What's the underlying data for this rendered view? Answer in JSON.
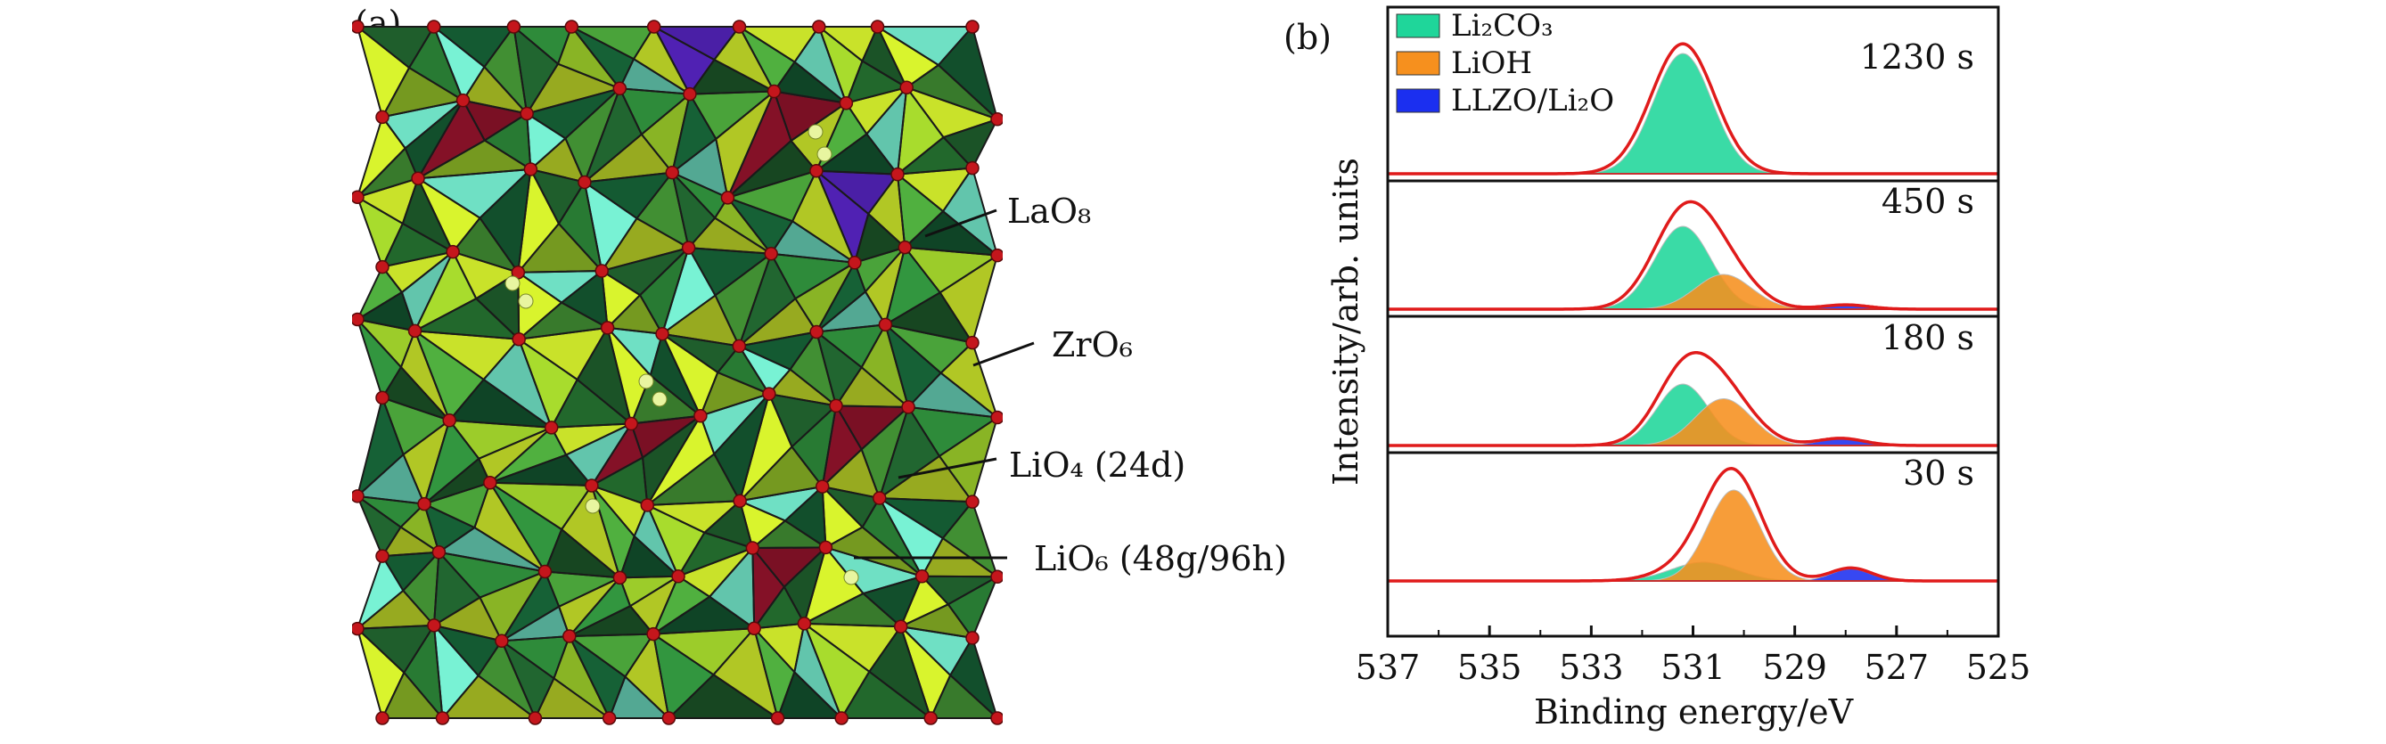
{
  "panel_a": {
    "label": "(a)",
    "annotations": [
      {
        "id": "lao8",
        "text": "LaO₈"
      },
      {
        "id": "zro6",
        "text": "ZrO₆"
      },
      {
        "id": "lio4",
        "text": "LiO₄ (24d)"
      },
      {
        "id": "lio6",
        "text": "LiO₆ (48g/96h)"
      }
    ],
    "colors": {
      "lao8_dark": "#1f5e2c",
      "lao8_light": "#c9e22a",
      "zro6": "#6fe0c4",
      "lio4": "#7a1024",
      "lio6": "#4a1fa6",
      "oxygen": "#c4161c"
    }
  },
  "panel_b": {
    "label": "(b)",
    "chart_data": {
      "type": "area",
      "xlabel": "Binding energy/eV",
      "ylabel": "Intensity/arb. units",
      "xlim": [
        537,
        525
      ],
      "xaxis_reversed": true,
      "xticks": [
        "537",
        "535",
        "533",
        "531",
        "529",
        "527",
        "525"
      ],
      "legend": {
        "placement": "top-left",
        "entries": [
          {
            "name": "Li₂CO₃",
            "color": "#1fd69a"
          },
          {
            "name": "LiOH",
            "color": "#f6901e"
          },
          {
            "name": "LLZO/Li₂O",
            "color": "#1b2ff0"
          }
        ]
      },
      "envelope_color": "#e01b1b",
      "baseline_color": "#a9a9a9",
      "panels": [
        {
          "label": "1230 s",
          "components": [
            {
              "name": "Li₂CO₃",
              "center": 531.2,
              "fwhm": 1.35,
              "height": 0.9
            }
          ]
        },
        {
          "label": "450 s",
          "components": [
            {
              "name": "Li₂CO₃",
              "center": 531.2,
              "fwhm": 1.3,
              "height": 0.62
            },
            {
              "name": "LiOH",
              "center": 530.4,
              "fwhm": 1.3,
              "height": 0.26
            },
            {
              "name": "LLZO/Li₂O",
              "center": 528.0,
              "fwhm": 1.0,
              "height": 0.03
            }
          ]
        },
        {
          "label": "180 s",
          "components": [
            {
              "name": "Li₂CO₃",
              "center": 531.2,
              "fwhm": 1.2,
              "height": 0.46
            },
            {
              "name": "LiOH",
              "center": 530.4,
              "fwhm": 1.3,
              "height": 0.35
            },
            {
              "name": "LLZO/Li₂O",
              "center": 528.1,
              "fwhm": 1.0,
              "height": 0.05
            }
          ]
        },
        {
          "label": "30 s",
          "components": [
            {
              "name": "Li₂CO₃",
              "center": 530.8,
              "fwhm": 1.5,
              "height": 0.14
            },
            {
              "name": "LiOH",
              "center": 530.2,
              "fwhm": 1.2,
              "height": 0.68
            },
            {
              "name": "LLZO/Li₂O",
              "center": 527.9,
              "fwhm": 0.9,
              "height": 0.09
            }
          ]
        }
      ]
    }
  }
}
